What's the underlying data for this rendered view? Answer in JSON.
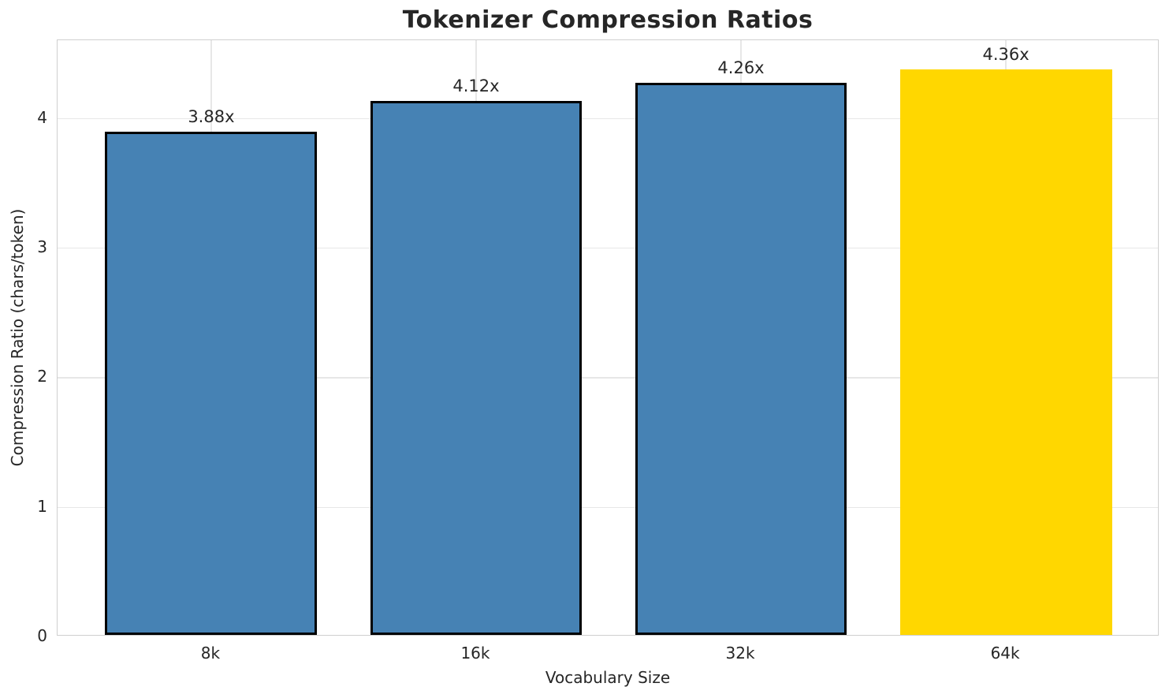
{
  "chart_data": {
    "type": "bar",
    "title": "Tokenizer Compression Ratios",
    "xlabel": "Vocabulary Size",
    "ylabel": "Compression Ratio (chars/token)",
    "categories": [
      "8k",
      "16k",
      "32k",
      "64k"
    ],
    "values": [
      3.88,
      4.12,
      4.26,
      4.36
    ],
    "bar_labels": [
      "3.88x",
      "4.12x",
      "4.26x",
      "4.36x"
    ],
    "bar_colors": [
      "#4682b4",
      "#4682b4",
      "#4682b4",
      "#ffd700"
    ],
    "bar_edge_colors": [
      "#000000",
      "#000000",
      "#000000",
      "none"
    ],
    "highlighted_category": "64k",
    "y_ticks": [
      0,
      1,
      2,
      3,
      4
    ],
    "ylim": [
      0,
      4.6
    ],
    "grid": true,
    "legend_position": "none"
  },
  "colors": {
    "background": "#ffffff",
    "grid": "#e7e7e7",
    "spine": "#cfcfcf",
    "text": "#262626",
    "bar_default": "#4682b4",
    "bar_highlight": "#ffd700",
    "bar_edge": "#000000"
  }
}
